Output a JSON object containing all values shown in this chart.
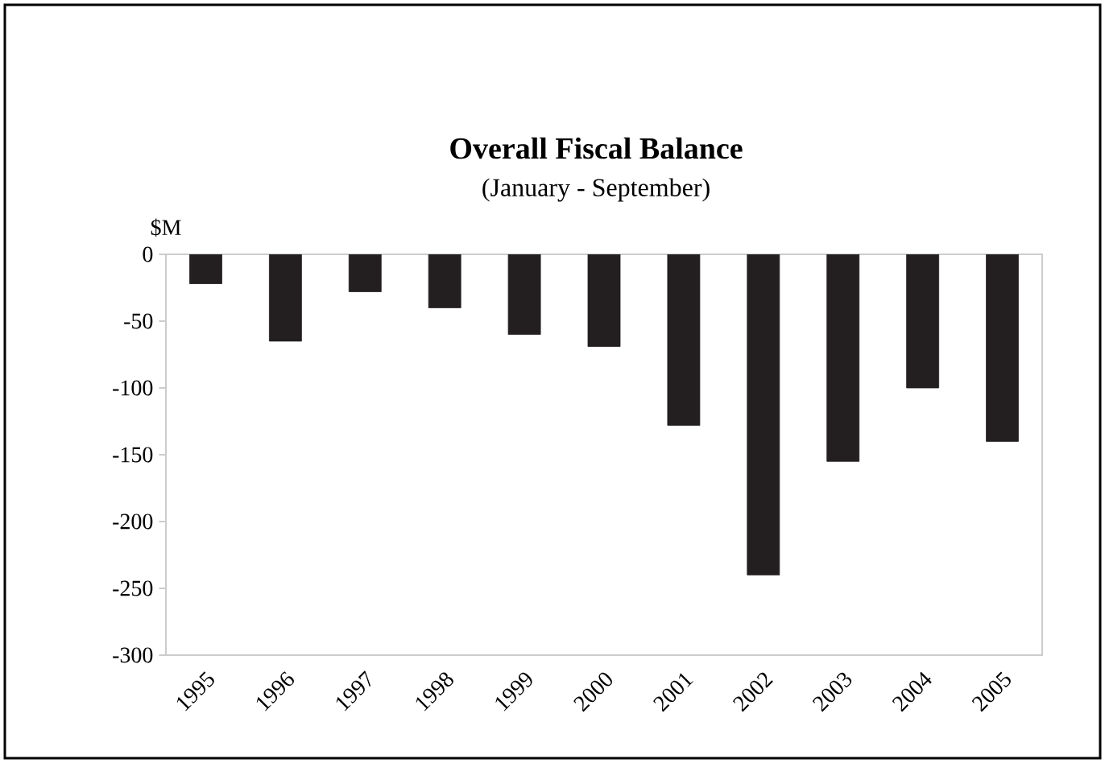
{
  "chart_data": {
    "type": "bar",
    "title": "Overall Fiscal Balance",
    "subtitle": "(January - September)",
    "ylabel": "$M",
    "categories": [
      "1995",
      "1996",
      "1997",
      "1998",
      "1999",
      "2000",
      "2001",
      "2002",
      "2003",
      "2004",
      "2005"
    ],
    "values": [
      -22,
      -65,
      -28,
      -40,
      -60,
      -69,
      -128,
      -240,
      -155,
      -100,
      -140
    ],
    "color": "#231f20",
    "ylim": [
      -300,
      0
    ],
    "yticks": [
      0,
      -50,
      -100,
      -150,
      -200,
      -250,
      -300
    ],
    "grid": false
  }
}
